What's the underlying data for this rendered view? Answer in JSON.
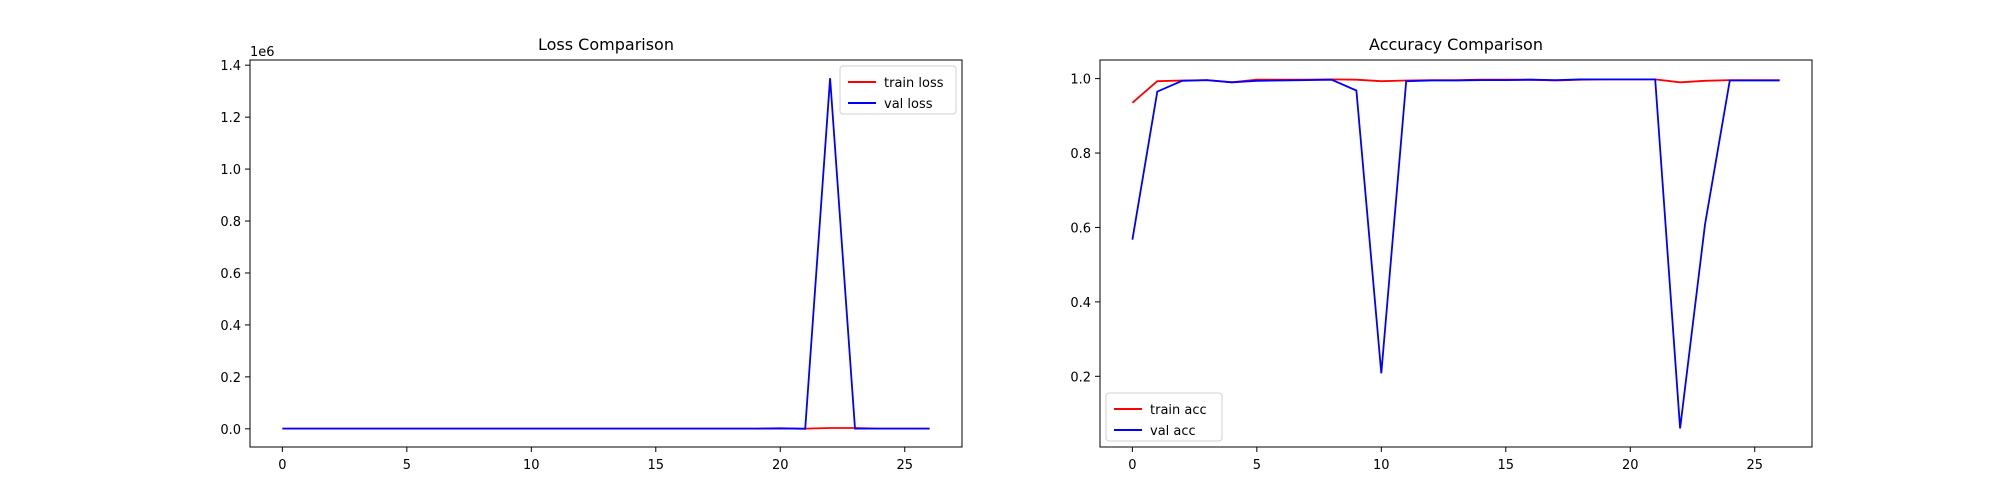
{
  "chart_data": [
    {
      "type": "line",
      "title": "Loss Comparison",
      "xlabel": "",
      "ylabel": "",
      "offset_label": "1e6",
      "x": [
        0,
        1,
        2,
        3,
        4,
        5,
        6,
        7,
        8,
        9,
        10,
        11,
        12,
        13,
        14,
        15,
        16,
        17,
        18,
        19,
        20,
        21,
        22,
        23,
        24,
        25,
        26
      ],
      "xlim": [
        -1.3,
        27.3
      ],
      "ylim": [
        -0.07,
        1.42
      ],
      "x_ticks": [
        0,
        5,
        10,
        15,
        20,
        25
      ],
      "x_tick_labels": [
        "0",
        "5",
        "10",
        "15",
        "20",
        "25"
      ],
      "y_ticks": [
        0.0,
        0.2,
        0.4,
        0.6,
        0.8,
        1.0,
        1.2,
        1.4
      ],
      "y_tick_labels": [
        "0.0",
        "0.2",
        "0.4",
        "0.6",
        "0.8",
        "1.0",
        "1.2",
        "1.4"
      ],
      "y_unit_note": "values in units of 1e6",
      "grid": false,
      "legend_position": "top-right",
      "series": [
        {
          "name": "train loss",
          "color": "#ff0000",
          "values": [
            0.001,
            0.001,
            0.001,
            0.001,
            0.001,
            0.001,
            0.001,
            0.001,
            0.001,
            0.001,
            0.001,
            0.001,
            0.001,
            0.001,
            0.001,
            0.001,
            0.001,
            0.001,
            0.001,
            0.001,
            0.001,
            0.001,
            0.003,
            0.003,
            0.001,
            0.001,
            0.001
          ]
        },
        {
          "name": "val loss",
          "color": "#0000ff",
          "values": [
            0.001,
            0.001,
            0.001,
            0.001,
            0.001,
            0.001,
            0.001,
            0.001,
            0.001,
            0.001,
            0.001,
            0.001,
            0.001,
            0.001,
            0.001,
            0.001,
            0.001,
            0.001,
            0.001,
            0.001,
            0.002,
            0.0,
            1.35,
            0.001,
            0.001,
            0.001,
            0.001
          ]
        }
      ]
    },
    {
      "type": "line",
      "title": "Accuracy Comparison",
      "xlabel": "",
      "ylabel": "",
      "x": [
        0,
        1,
        2,
        3,
        4,
        5,
        6,
        7,
        8,
        9,
        10,
        11,
        12,
        13,
        14,
        15,
        16,
        17,
        18,
        19,
        20,
        21,
        22,
        23,
        24,
        25,
        26
      ],
      "xlim": [
        -1.3,
        27.3
      ],
      "ylim": [
        0.01,
        1.05
      ],
      "x_ticks": [
        0,
        5,
        10,
        15,
        20,
        25
      ],
      "x_tick_labels": [
        "0",
        "5",
        "10",
        "15",
        "20",
        "25"
      ],
      "y_ticks": [
        0.2,
        0.4,
        0.6,
        0.8,
        1.0
      ],
      "y_tick_labels": [
        "0.2",
        "0.4",
        "0.6",
        "0.8",
        "1.0"
      ],
      "grid": false,
      "legend_position": "bottom-left",
      "series": [
        {
          "name": "train acc",
          "color": "#ff0000",
          "values": [
            0.935,
            0.993,
            0.995,
            0.996,
            0.99,
            0.997,
            0.997,
            0.997,
            0.998,
            0.997,
            0.993,
            0.995,
            0.996,
            0.996,
            0.997,
            0.997,
            0.997,
            0.995,
            0.997,
            0.998,
            0.998,
            0.998,
            0.99,
            0.994,
            0.996,
            0.996,
            0.996
          ]
        },
        {
          "name": "val acc",
          "color": "#0000ff",
          "values": [
            0.567,
            0.965,
            0.994,
            0.996,
            0.99,
            0.994,
            0.995,
            0.996,
            0.997,
            0.968,
            0.208,
            0.993,
            0.995,
            0.995,
            0.996,
            0.996,
            0.997,
            0.996,
            0.998,
            0.998,
            0.998,
            0.998,
            0.06,
            0.608,
            0.995,
            0.995,
            0.995
          ]
        }
      ]
    }
  ]
}
